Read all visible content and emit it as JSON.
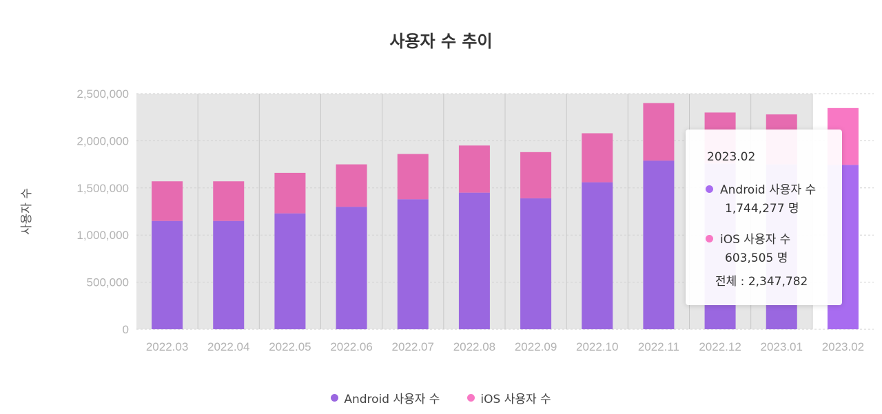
{
  "chart_data": {
    "type": "bar",
    "stacked": true,
    "title": "사용자 수 추이",
    "xlabel": "",
    "ylabel": "사용자 수",
    "ylim": [
      0,
      2500000
    ],
    "yticks": [
      "0",
      "500,000",
      "1,000,000",
      "1,500,000",
      "2,000,000",
      "2,500,000"
    ],
    "grid": true,
    "legend_position": "bottom",
    "categories": [
      "2022.03",
      "2022.04",
      "2022.05",
      "2022.06",
      "2022.07",
      "2022.08",
      "2022.09",
      "2022.10",
      "2022.11",
      "2022.12",
      "2023.01",
      "2023.02"
    ],
    "series": [
      {
        "name": "Android 사용자 수",
        "color": "#9a67e0",
        "values": [
          1150000,
          1150000,
          1230000,
          1300000,
          1380000,
          1450000,
          1390000,
          1560000,
          1790000,
          1760000,
          1750000,
          1744277
        ]
      },
      {
        "name": "iOS 사용자 수",
        "color": "#e66bb0",
        "values": [
          420000,
          420000,
          430000,
          450000,
          480000,
          500000,
          490000,
          520000,
          610000,
          540000,
          530000,
          603505
        ]
      }
    ],
    "highlight": {
      "category": "2023.02",
      "android_color": "#a86cf0",
      "ios_color": "#f878c4"
    }
  },
  "tooltip": {
    "date": "2023.02",
    "android_label": "Android 사용자 수",
    "android_value": "1,744,277 명",
    "ios_label": "iOS 사용자 수",
    "ios_value": "603,505 명",
    "total": "전체 : 2,347,782"
  },
  "legend": {
    "android": "Android 사용자 수",
    "ios": "iOS 사용자 수"
  },
  "colors": {
    "android": "#9a67e0",
    "ios": "#e66bb0",
    "tooltip_android_dot": "#a86cf0",
    "tooltip_ios_dot": "#f878c4",
    "hover_band": "#e6e6e6"
  }
}
